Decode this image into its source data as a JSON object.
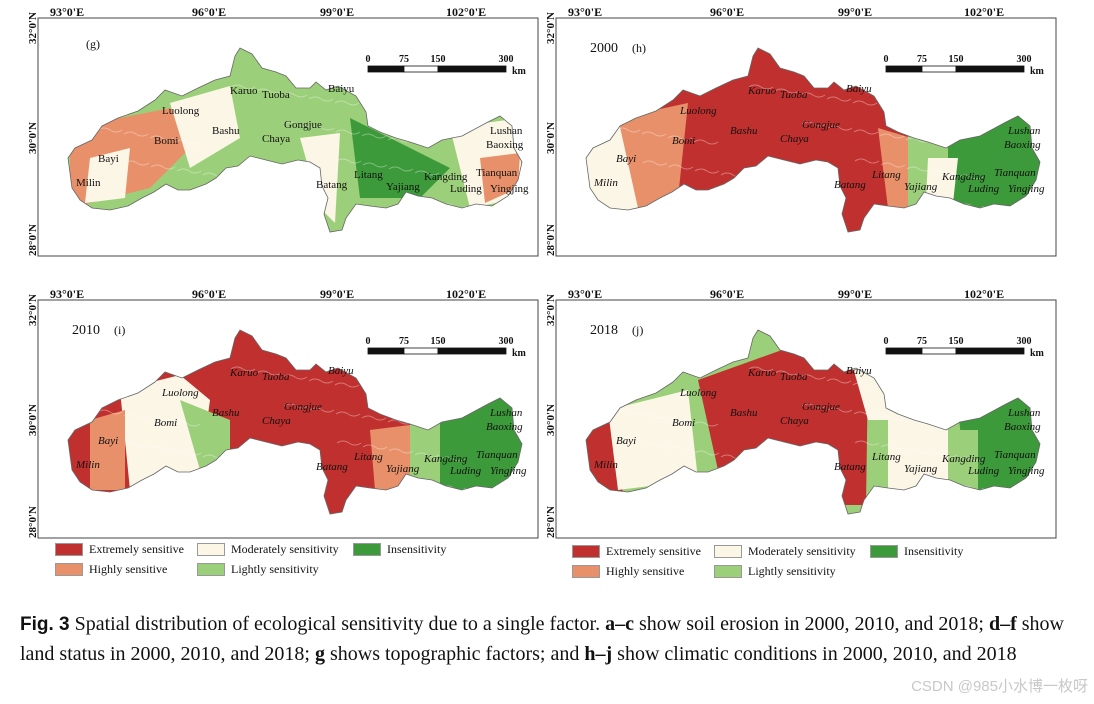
{
  "axes": {
    "lon_labels": [
      "93°0'E",
      "96°0'E",
      "99°0'E",
      "102°0'E"
    ],
    "lat_labels": [
      "32°0'N",
      "30°0'N",
      "28°0'N"
    ]
  },
  "scale_bar": {
    "ticks": [
      "0",
      "75",
      "150",
      "300"
    ],
    "unit": "km"
  },
  "panels": [
    {
      "id": "g",
      "year": "",
      "label": "(g)",
      "style": "topographic",
      "italic_places": false
    },
    {
      "id": "h",
      "year": "2000",
      "label": "(h)",
      "style": "climate2000",
      "italic_places": true
    },
    {
      "id": "i",
      "year": "2010",
      "label": "(i)",
      "style": "climate2010",
      "italic_places": true
    },
    {
      "id": "j",
      "year": "2018",
      "label": "(j)",
      "style": "climate2018",
      "italic_places": true
    }
  ],
  "places": [
    "Karuo",
    "Tuoba",
    "Luolong",
    "Bashu",
    "Gongjue",
    "Baiyu",
    "Chaya",
    "Bomi",
    "Bayi",
    "Milin",
    "Lushan",
    "Baoxing",
    "Batang",
    "Litang",
    "Yajiang",
    "Kangding",
    "Tianquan",
    "Luding",
    "Yingjing"
  ],
  "legend": [
    {
      "label": "Extremely sensitive",
      "color": "#c0302f"
    },
    {
      "label": "Moderately sensitivity",
      "color": "#fbf6e6"
    },
    {
      "label": "Insensitivity",
      "color": "#3d9a3a"
    },
    {
      "label": "Highly sensitive",
      "color": "#e8906a"
    },
    {
      "label": "Lightly sensitivity",
      "color": "#9ccf7a"
    }
  ],
  "caption": {
    "fig": "Fig. 3",
    "t1": "  Spatial distribution of ecological sensitivity due to a single factor. ",
    "b1": "a–c",
    "t2": " show soil erosion in 2000, 2010, and 2018; ",
    "b2": "d–f",
    "t3": " show land status in 2000, 2010, and 2018; ",
    "b3": "g",
    "t4": " shows topographic factors; and ",
    "b4": "h–j",
    "t5": " show climatic conditions in 2000, 2010, and 2018"
  },
  "watermark": "CSDN @985小水博一枚呀"
}
